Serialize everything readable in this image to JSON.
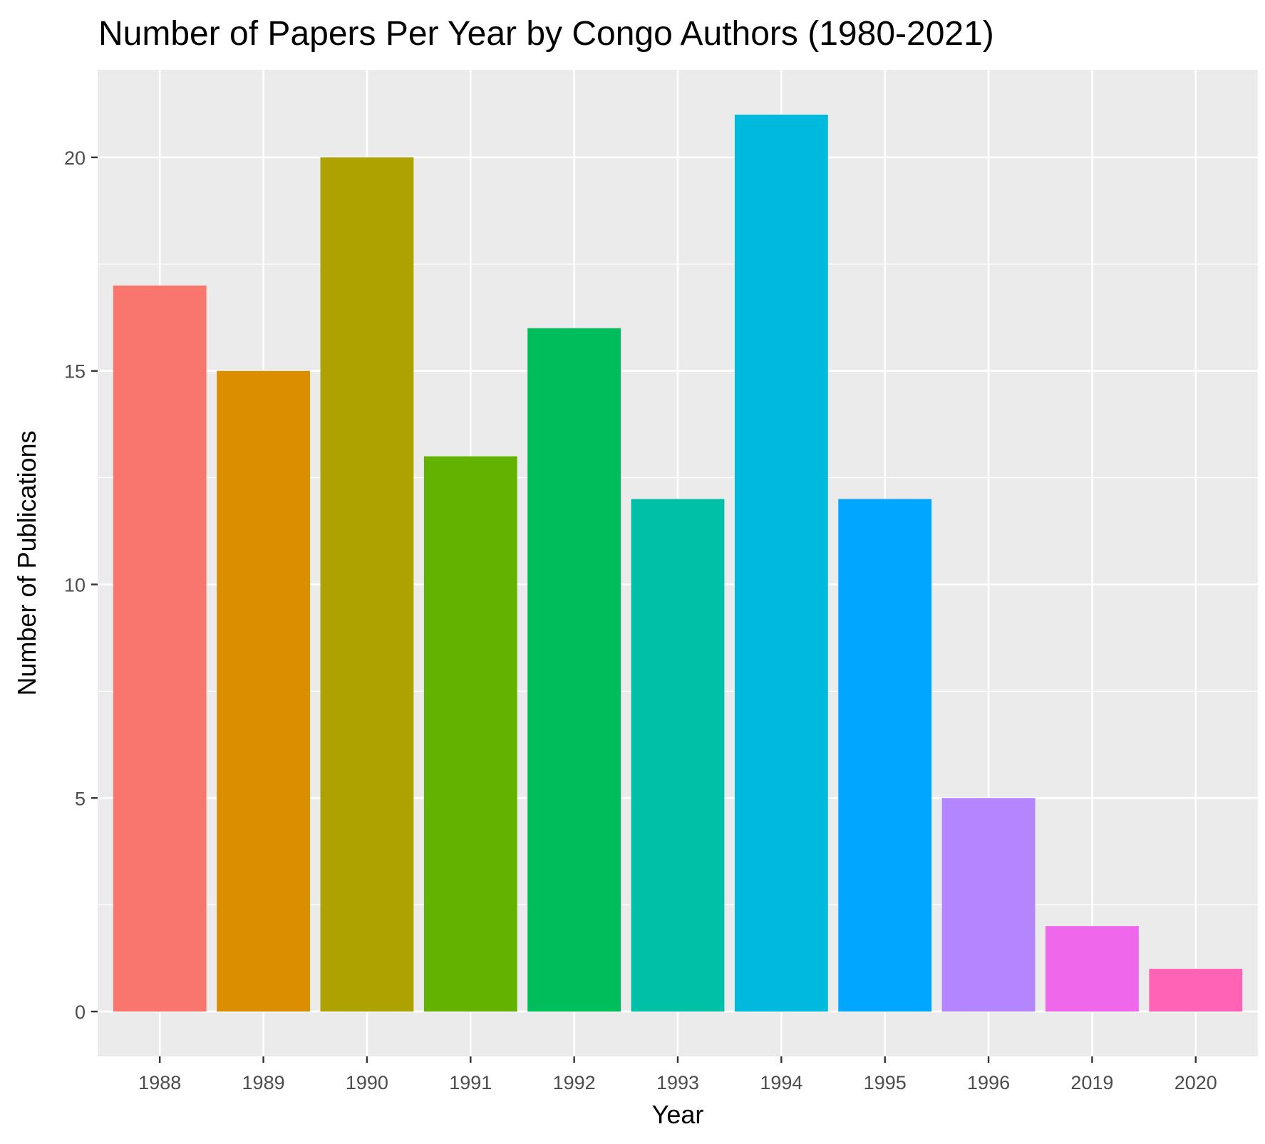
{
  "chart_data": {
    "type": "bar",
    "title": "Number of Papers Per Year by Congo Authors (1980-2021)",
    "xlabel": "Year",
    "ylabel": "Number of Publications",
    "categories": [
      "1988",
      "1989",
      "1990",
      "1991",
      "1992",
      "1993",
      "1994",
      "1995",
      "1996",
      "2019",
      "2020"
    ],
    "values": [
      17,
      15,
      20,
      13,
      16,
      12,
      21,
      12,
      5,
      2,
      1
    ],
    "colors": [
      "#F8766D",
      "#DB8E00",
      "#AEA200",
      "#64B200",
      "#00BD5C",
      "#00C1A7",
      "#00BADE",
      "#00A6FF",
      "#B385FF",
      "#EF67EB",
      "#FF63B6"
    ],
    "y_ticks": [
      0,
      5,
      10,
      15,
      20
    ],
    "ylim": [
      -1.05,
      22.05
    ],
    "grid": true,
    "legend": "none",
    "panel_background": "#EBEBEB",
    "grid_color": "#FFFFFF"
  }
}
